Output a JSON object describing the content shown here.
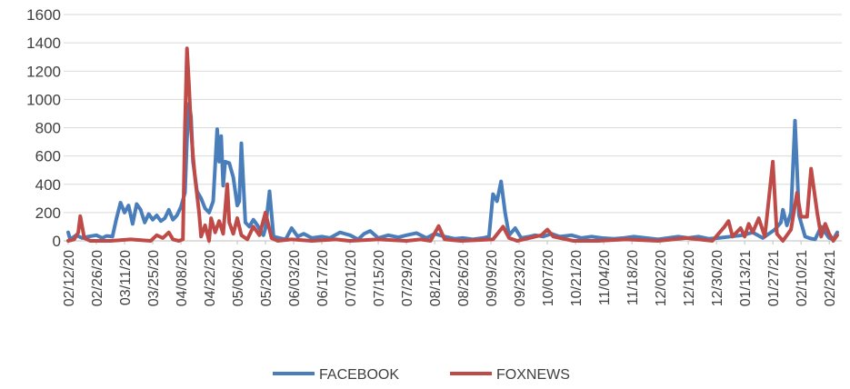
{
  "chart_data": {
    "type": "line",
    "x_tick_labels": [
      "02/12/20",
      "02/26/20",
      "03/11/20",
      "03/25/20",
      "04/08/20",
      "04/22/20",
      "05/06/20",
      "05/20/20",
      "06/03/20",
      "06/17/20",
      "07/01/20",
      "07/15/20",
      "07/29/20",
      "08/12/20",
      "08/26/20",
      "09/09/20",
      "09/23/20",
      "10/07/20",
      "10/21/20",
      "11/04/20",
      "11/18/20",
      "12/02/20",
      "12/16/20",
      "12/30/20",
      "01/13/21",
      "01/27/21",
      "02/10/21",
      "02/24/21"
    ],
    "x_range": [
      "02/12/20",
      "02/28/21"
    ],
    "ylim": [
      0,
      1600
    ],
    "yticks": [
      0,
      200,
      400,
      600,
      800,
      1000,
      1200,
      1400,
      1600
    ],
    "grid": "horizontal",
    "legend_position": "bottom",
    "series": [
      {
        "name": "FACEBOOK",
        "color": "#4a7ebb",
        "points": [
          [
            "02/12/20",
            60
          ],
          [
            "02/13/20",
            10
          ],
          [
            "02/16/20",
            40
          ],
          [
            "02/19/20",
            20
          ],
          [
            "02/22/20",
            30
          ],
          [
            "02/26/20",
            40
          ],
          [
            "02/29/20",
            20
          ],
          [
            "03/02/20",
            35
          ],
          [
            "03/05/20",
            30
          ],
          [
            "03/07/20",
            160
          ],
          [
            "03/09/20",
            270
          ],
          [
            "03/11/20",
            200
          ],
          [
            "03/13/20",
            250
          ],
          [
            "03/15/20",
            120
          ],
          [
            "03/17/20",
            260
          ],
          [
            "03/19/20",
            220
          ],
          [
            "03/21/20",
            130
          ],
          [
            "03/23/20",
            190
          ],
          [
            "03/25/20",
            150
          ],
          [
            "03/27/20",
            180
          ],
          [
            "03/29/20",
            140
          ],
          [
            "03/31/20",
            160
          ],
          [
            "04/02/20",
            220
          ],
          [
            "04/04/20",
            150
          ],
          [
            "04/06/20",
            180
          ],
          [
            "04/08/20",
            240
          ],
          [
            "04/10/20",
            340
          ],
          [
            "04/11/20",
            720
          ],
          [
            "04/12/20",
            970
          ],
          [
            "04/13/20",
            880
          ],
          [
            "04/14/20",
            560
          ],
          [
            "04/16/20",
            350
          ],
          [
            "04/18/20",
            300
          ],
          [
            "04/20/20",
            230
          ],
          [
            "04/22/20",
            200
          ],
          [
            "04/24/20",
            280
          ],
          [
            "04/26/20",
            790
          ],
          [
            "04/27/20",
            560
          ],
          [
            "04/28/20",
            740
          ],
          [
            "04/29/20",
            390
          ],
          [
            "04/30/20",
            560
          ],
          [
            "05/02/20",
            550
          ],
          [
            "05/04/20",
            450
          ],
          [
            "05/06/20",
            250
          ],
          [
            "05/07/20",
            280
          ],
          [
            "05/08/20",
            690
          ],
          [
            "05/10/20",
            130
          ],
          [
            "05/12/20",
            100
          ],
          [
            "05/14/20",
            150
          ],
          [
            "05/16/20",
            110
          ],
          [
            "05/18/20",
            60
          ],
          [
            "05/19/20",
            40
          ],
          [
            "05/20/20",
            90
          ],
          [
            "05/22/20",
            350
          ],
          [
            "05/24/20",
            30
          ],
          [
            "05/27/20",
            20
          ],
          [
            "05/30/20",
            10
          ],
          [
            "06/02/20",
            90
          ],
          [
            "06/05/20",
            30
          ],
          [
            "06/08/20",
            50
          ],
          [
            "06/12/20",
            20
          ],
          [
            "06/17/20",
            30
          ],
          [
            "06/21/20",
            20
          ],
          [
            "06/26/20",
            60
          ],
          [
            "07/01/20",
            40
          ],
          [
            "07/05/20",
            10
          ],
          [
            "07/08/20",
            50
          ],
          [
            "07/11/20",
            70
          ],
          [
            "07/15/20",
            20
          ],
          [
            "07/20/20",
            40
          ],
          [
            "07/25/20",
            25
          ],
          [
            "07/29/20",
            40
          ],
          [
            "08/03/20",
            55
          ],
          [
            "08/08/20",
            20
          ],
          [
            "08/12/20",
            50
          ],
          [
            "08/17/20",
            30
          ],
          [
            "08/22/20",
            15
          ],
          [
            "08/26/20",
            20
          ],
          [
            "08/31/20",
            10
          ],
          [
            "09/05/20",
            20
          ],
          [
            "09/08/20",
            30
          ],
          [
            "09/10/20",
            330
          ],
          [
            "09/12/20",
            280
          ],
          [
            "09/14/20",
            420
          ],
          [
            "09/16/20",
            200
          ],
          [
            "09/18/20",
            40
          ],
          [
            "09/21/20",
            90
          ],
          [
            "09/24/20",
            20
          ],
          [
            "09/28/20",
            30
          ],
          [
            "10/01/20",
            40
          ],
          [
            "10/05/20",
            30
          ],
          [
            "10/09/20",
            50
          ],
          [
            "10/13/20",
            30
          ],
          [
            "10/19/20",
            40
          ],
          [
            "10/24/20",
            20
          ],
          [
            "10/29/20",
            30
          ],
          [
            "11/03/20",
            20
          ],
          [
            "11/09/20",
            15
          ],
          [
            "11/14/20",
            20
          ],
          [
            "11/19/20",
            30
          ],
          [
            "11/25/20",
            20
          ],
          [
            "12/01/20",
            10
          ],
          [
            "12/06/20",
            20
          ],
          [
            "12/11/20",
            30
          ],
          [
            "12/16/20",
            20
          ],
          [
            "12/21/20",
            30
          ],
          [
            "12/26/20",
            15
          ],
          [
            "12/31/20",
            20
          ],
          [
            "01/06/21",
            30
          ],
          [
            "01/12/21",
            40
          ],
          [
            "01/17/21",
            60
          ],
          [
            "01/22/21",
            20
          ],
          [
            "01/28/21",
            80
          ],
          [
            "01/31/21",
            130
          ],
          [
            "02/01/21",
            220
          ],
          [
            "02/03/21",
            110
          ],
          [
            "02/05/21",
            200
          ],
          [
            "02/07/21",
            850
          ],
          [
            "02/09/21",
            180
          ],
          [
            "02/12/21",
            30
          ],
          [
            "02/14/21",
            20
          ],
          [
            "02/17/21",
            10
          ],
          [
            "02/20/21",
            100
          ],
          [
            "02/22/21",
            60
          ],
          [
            "02/24/21",
            20
          ],
          [
            "02/26/21",
            10
          ],
          [
            "02/28/21",
            60
          ]
        ]
      },
      {
        "name": "FOXNEWS",
        "color": "#be4b48",
        "points": [
          [
            "02/12/20",
            0
          ],
          [
            "02/15/20",
            10
          ],
          [
            "02/17/20",
            60
          ],
          [
            "02/18/20",
            175
          ],
          [
            "02/20/20",
            20
          ],
          [
            "02/23/20",
            0
          ],
          [
            "03/04/20",
            0
          ],
          [
            "03/14/20",
            10
          ],
          [
            "03/24/20",
            0
          ],
          [
            "03/27/20",
            40
          ],
          [
            "03/30/20",
            20
          ],
          [
            "04/02/20",
            60
          ],
          [
            "04/04/20",
            10
          ],
          [
            "04/07/20",
            0
          ],
          [
            "04/09/20",
            10
          ],
          [
            "04/10/20",
            820
          ],
          [
            "04/11/20",
            1360
          ],
          [
            "04/12/20",
            1100
          ],
          [
            "04/13/20",
            800
          ],
          [
            "04/14/20",
            600
          ],
          [
            "04/15/20",
            450
          ],
          [
            "04/17/20",
            200
          ],
          [
            "04/18/20",
            30
          ],
          [
            "04/20/20",
            110
          ],
          [
            "04/22/20",
            0
          ],
          [
            "04/23/20",
            160
          ],
          [
            "04/25/20",
            60
          ],
          [
            "04/27/20",
            140
          ],
          [
            "04/29/20",
            50
          ],
          [
            "05/01/20",
            400
          ],
          [
            "05/02/20",
            130
          ],
          [
            "05/04/20",
            50
          ],
          [
            "05/06/20",
            160
          ],
          [
            "05/08/20",
            40
          ],
          [
            "05/11/20",
            10
          ],
          [
            "05/14/20",
            100
          ],
          [
            "05/17/20",
            40
          ],
          [
            "05/20/20",
            200
          ],
          [
            "05/23/20",
            20
          ],
          [
            "05/26/20",
            0
          ],
          [
            "06/02/20",
            10
          ],
          [
            "06/12/20",
            0
          ],
          [
            "06/24/20",
            10
          ],
          [
            "07/01/20",
            0
          ],
          [
            "07/15/20",
            10
          ],
          [
            "07/29/20",
            0
          ],
          [
            "08/05/20",
            10
          ],
          [
            "08/10/20",
            0
          ],
          [
            "08/14/20",
            105
          ],
          [
            "08/17/20",
            10
          ],
          [
            "08/25/20",
            0
          ],
          [
            "09/10/20",
            10
          ],
          [
            "09/15/20",
            100
          ],
          [
            "09/18/20",
            20
          ],
          [
            "09/22/20",
            0
          ],
          [
            "10/04/20",
            40
          ],
          [
            "10/07/20",
            80
          ],
          [
            "10/10/20",
            30
          ],
          [
            "10/20/20",
            0
          ],
          [
            "11/01/20",
            0
          ],
          [
            "11/15/20",
            10
          ],
          [
            "12/01/20",
            0
          ],
          [
            "12/15/20",
            20
          ],
          [
            "12/28/20",
            0
          ],
          [
            "01/03/21",
            100
          ],
          [
            "01/05/21",
            140
          ],
          [
            "01/07/21",
            30
          ],
          [
            "01/11/21",
            90
          ],
          [
            "01/13/21",
            30
          ],
          [
            "01/15/21",
            120
          ],
          [
            "01/17/21",
            60
          ],
          [
            "01/20/21",
            160
          ],
          [
            "01/23/21",
            30
          ],
          [
            "01/27/21",
            560
          ],
          [
            "01/29/21",
            50
          ],
          [
            "02/01/21",
            0
          ],
          [
            "02/05/21",
            80
          ],
          [
            "02/08/21",
            340
          ],
          [
            "02/10/21",
            170
          ],
          [
            "02/13/21",
            170
          ],
          [
            "02/15/21",
            510
          ],
          [
            "02/18/21",
            200
          ],
          [
            "02/20/21",
            30
          ],
          [
            "02/22/21",
            120
          ],
          [
            "02/24/21",
            50
          ],
          [
            "02/26/21",
            0
          ],
          [
            "02/28/21",
            40
          ]
        ]
      }
    ]
  }
}
